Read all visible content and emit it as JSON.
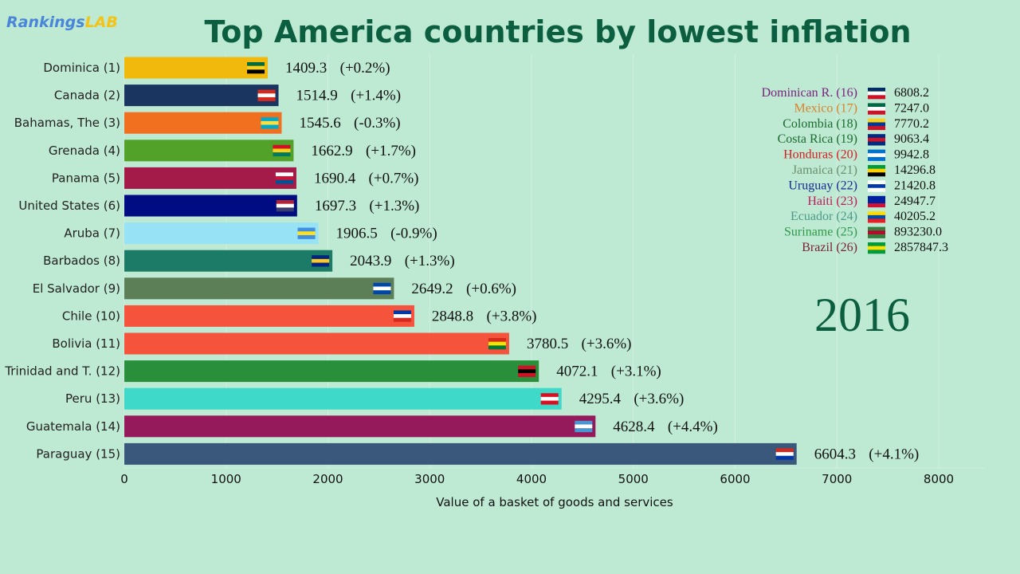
{
  "logo": {
    "part1": "Rankings",
    "part2": "LAB"
  },
  "title": "Top America countries by lowest inflation",
  "chart_data": {
    "type": "bar",
    "orientation": "horizontal",
    "title": "Top America countries by lowest inflation",
    "xlabel": "Value of a basket of goods and services",
    "xlim": [
      0,
      8000
    ],
    "xticks": [
      0,
      1000,
      2000,
      3000,
      4000,
      5000,
      6000,
      7000,
      8000
    ],
    "grid": true,
    "year": "2016",
    "bars": [
      {
        "label": "Dominica (1)",
        "value": 1409.3,
        "change": "(+0.2%)",
        "color": "#f0b90c",
        "flag": [
          "#006b3f",
          "#fcd116",
          "#000"
        ]
      },
      {
        "label": "Canada (2)",
        "value": 1514.9,
        "change": "(+1.4%)",
        "color": "#1b3561",
        "flag": [
          "#d52b1e",
          "#fff",
          "#d52b1e"
        ]
      },
      {
        "label": "Bahamas, The (3)",
        "value": 1545.6,
        "change": "(-0.3%)",
        "color": "#f07020",
        "flag": [
          "#00abc9",
          "#fae042",
          "#00abc9"
        ]
      },
      {
        "label": "Grenada (4)",
        "value": 1662.9,
        "change": "(+1.7%)",
        "color": "#52a22a",
        "flag": [
          "#ce1126",
          "#fcd116",
          "#007a5e"
        ]
      },
      {
        "label": "Panama (5)",
        "value": 1690.4,
        "change": "(+0.7%)",
        "color": "#a41b4a",
        "flag": [
          "#fff",
          "#d21034",
          "#005293"
        ]
      },
      {
        "label": "United States (6)",
        "value": 1697.3,
        "change": "(+1.3%)",
        "color": "#000d82",
        "flag": [
          "#b22234",
          "#fff",
          "#3c3b6e"
        ]
      },
      {
        "label": "Aruba (7)",
        "value": 1906.5,
        "change": "(-0.9%)",
        "color": "#98e2f6",
        "flag": [
          "#418fde",
          "#fbe122",
          "#418fde"
        ]
      },
      {
        "label": "Barbados (8)",
        "value": 2043.9,
        "change": "(+1.3%)",
        "color": "#1b7b67",
        "flag": [
          "#00267f",
          "#ffc726",
          "#00267f"
        ]
      },
      {
        "label": "El Salvador (9)",
        "value": 2649.2,
        "change": "(+0.6%)",
        "color": "#5d7f57",
        "flag": [
          "#0047ab",
          "#fff",
          "#0047ab"
        ]
      },
      {
        "label": "Chile (10)",
        "value": 2848.8,
        "change": "(+3.8%)",
        "color": "#f5533c",
        "flag": [
          "#0039a6",
          "#fff",
          "#d52b1e"
        ]
      },
      {
        "label": "Bolivia (11)",
        "value": 3780.5,
        "change": "(+3.6%)",
        "color": "#f5533c",
        "flag": [
          "#d52b1e",
          "#f9e300",
          "#007934"
        ]
      },
      {
        "label": "Trinidad and T. (12)",
        "value": 4072.1,
        "change": "(+3.1%)",
        "color": "#2a8f3a",
        "flag": [
          "#ce1126",
          "#000",
          "#ce1126"
        ]
      },
      {
        "label": "Peru (13)",
        "value": 4295.4,
        "change": "(+3.6%)",
        "color": "#3ed9c8",
        "flag": [
          "#d91023",
          "#fff",
          "#d91023"
        ]
      },
      {
        "label": "Guatemala (14)",
        "value": 4628.4,
        "change": "(+4.4%)",
        "color": "#951a5c",
        "flag": [
          "#4997d0",
          "#fff",
          "#4997d0"
        ]
      },
      {
        "label": "Paraguay (15)",
        "value": 6604.3,
        "change": "(+4.1%)",
        "color": "#3a587c",
        "flag": [
          "#d52b1e",
          "#fff",
          "#0038a8"
        ]
      }
    ],
    "legend_others": [
      {
        "label": "Dominican R. (16)",
        "value": "6808.2",
        "color": "#7b1f7f",
        "flag": [
          "#002d62",
          "#fff",
          "#ce1126"
        ]
      },
      {
        "label": "Mexico (17)",
        "value": "7247.0",
        "color": "#d9822b",
        "flag": [
          "#006847",
          "#fff",
          "#ce1126"
        ]
      },
      {
        "label": "Colombia (18)",
        "value": "7770.2",
        "color": "#1b6b2e",
        "flag": [
          "#fcd116",
          "#003893",
          "#ce1126"
        ]
      },
      {
        "label": "Costa Rica (19)",
        "value": "9063.4",
        "color": "#1b6b2e",
        "flag": [
          "#002b7f",
          "#ce1126",
          "#002b7f"
        ]
      },
      {
        "label": "Honduras (20)",
        "value": "9942.8",
        "color": "#d42020",
        "flag": [
          "#0073cf",
          "#fff",
          "#0073cf"
        ]
      },
      {
        "label": "Jamaica (21)",
        "value": "14296.8",
        "color": "#6d8f6d",
        "flag": [
          "#009b3a",
          "#fed100",
          "#000"
        ]
      },
      {
        "label": "Uruguay (22)",
        "value": "21420.8",
        "color": "#1a2a8f",
        "flag": [
          "#fff",
          "#0038a8",
          "#fff"
        ]
      },
      {
        "label": "Haiti (23)",
        "value": "24947.7",
        "color": "#c2185b",
        "flag": [
          "#00209f",
          "#00209f",
          "#d21034"
        ]
      },
      {
        "label": "Ecuador (24)",
        "value": "40205.2",
        "color": "#4c9a8a",
        "flag": [
          "#ffdd00",
          "#034ea2",
          "#ed1c24"
        ]
      },
      {
        "label": "Suriname (25)",
        "value": "893230.0",
        "color": "#2e9a48",
        "flag": [
          "#377e3f",
          "#b40a2d",
          "#377e3f"
        ]
      },
      {
        "label": "Brazil (26)",
        "value": "2857847.3",
        "color": "#7a1f3a",
        "flag": [
          "#009c3b",
          "#ffdf00",
          "#009c3b"
        ]
      }
    ]
  }
}
